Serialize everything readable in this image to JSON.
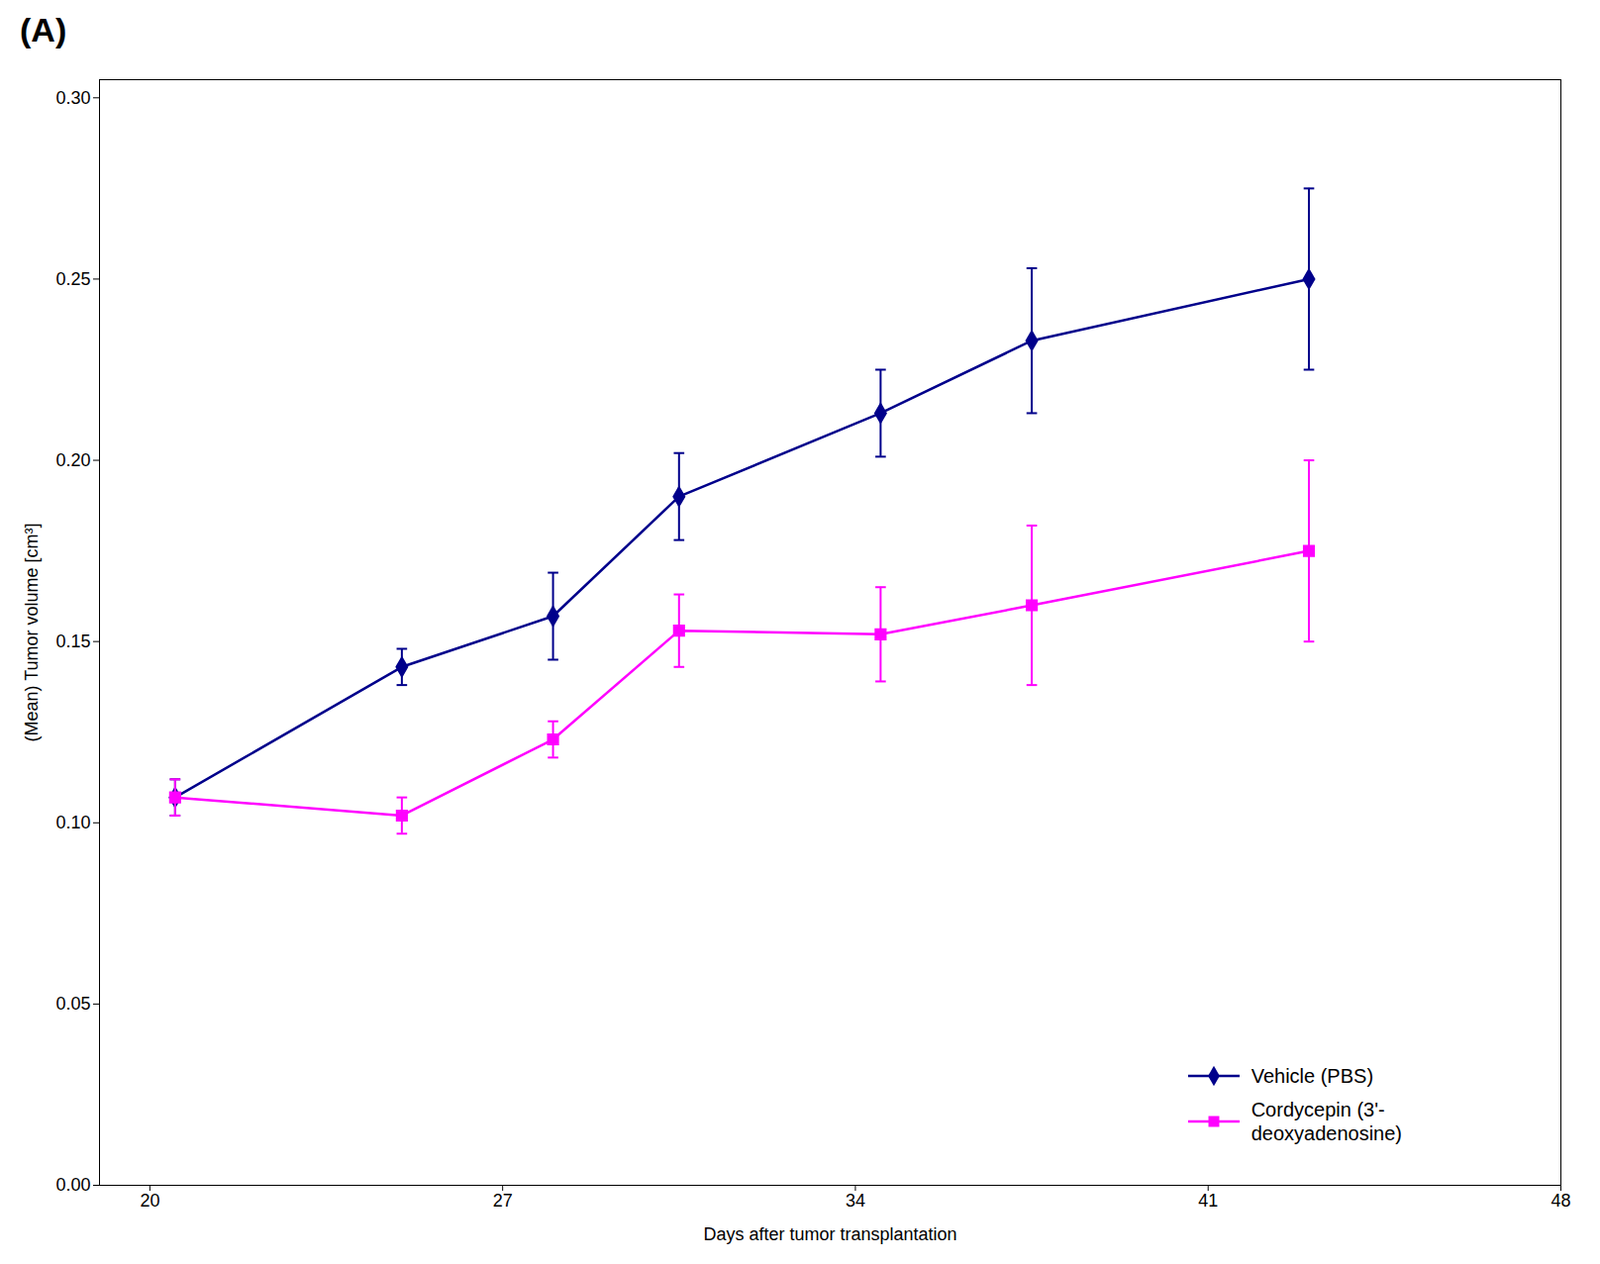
{
  "chart_data": {
    "type": "line",
    "title": "(A)",
    "xlabel": "Days after tumor transplantation",
    "ylabel": "(Mean) Tumor volume [cm³]",
    "x": [
      20.5,
      25.0,
      28.0,
      30.5,
      34.5,
      37.5,
      43.0
    ],
    "series": [
      {
        "name": "Vehicle (PBS)",
        "color": "#00008B",
        "marker": "diamond",
        "values": [
          0.107,
          0.143,
          0.157,
          0.19,
          0.213,
          0.233,
          0.25
        ],
        "yerr": [
          0.005,
          0.005,
          0.012,
          0.012,
          0.012,
          0.02,
          0.025
        ]
      },
      {
        "name": "Cordycepin (3'-\ndeoxyadenosine)",
        "color": "#FF00FF",
        "marker": "square",
        "values": [
          0.107,
          0.102,
          0.123,
          0.153,
          0.152,
          0.16,
          0.175
        ],
        "yerr": [
          0.005,
          0.005,
          0.005,
          0.01,
          0.013,
          0.022,
          0.025
        ]
      }
    ],
    "xlim": [
      19,
      48
    ],
    "xticks": [
      20,
      27,
      34,
      41,
      48
    ],
    "ylim": [
      0.0,
      0.305
    ],
    "yticks": [
      {
        "value": 0,
        "label": "0.00"
      },
      0.05,
      {
        "value": 0.1,
        "label": "0.10"
      },
      0.15,
      {
        "value": 0.2,
        "label": "0.20"
      },
      0.25,
      {
        "value": 0.3,
        "label": "0.30"
      }
    ],
    "grid": false,
    "legend": "lower right"
  }
}
